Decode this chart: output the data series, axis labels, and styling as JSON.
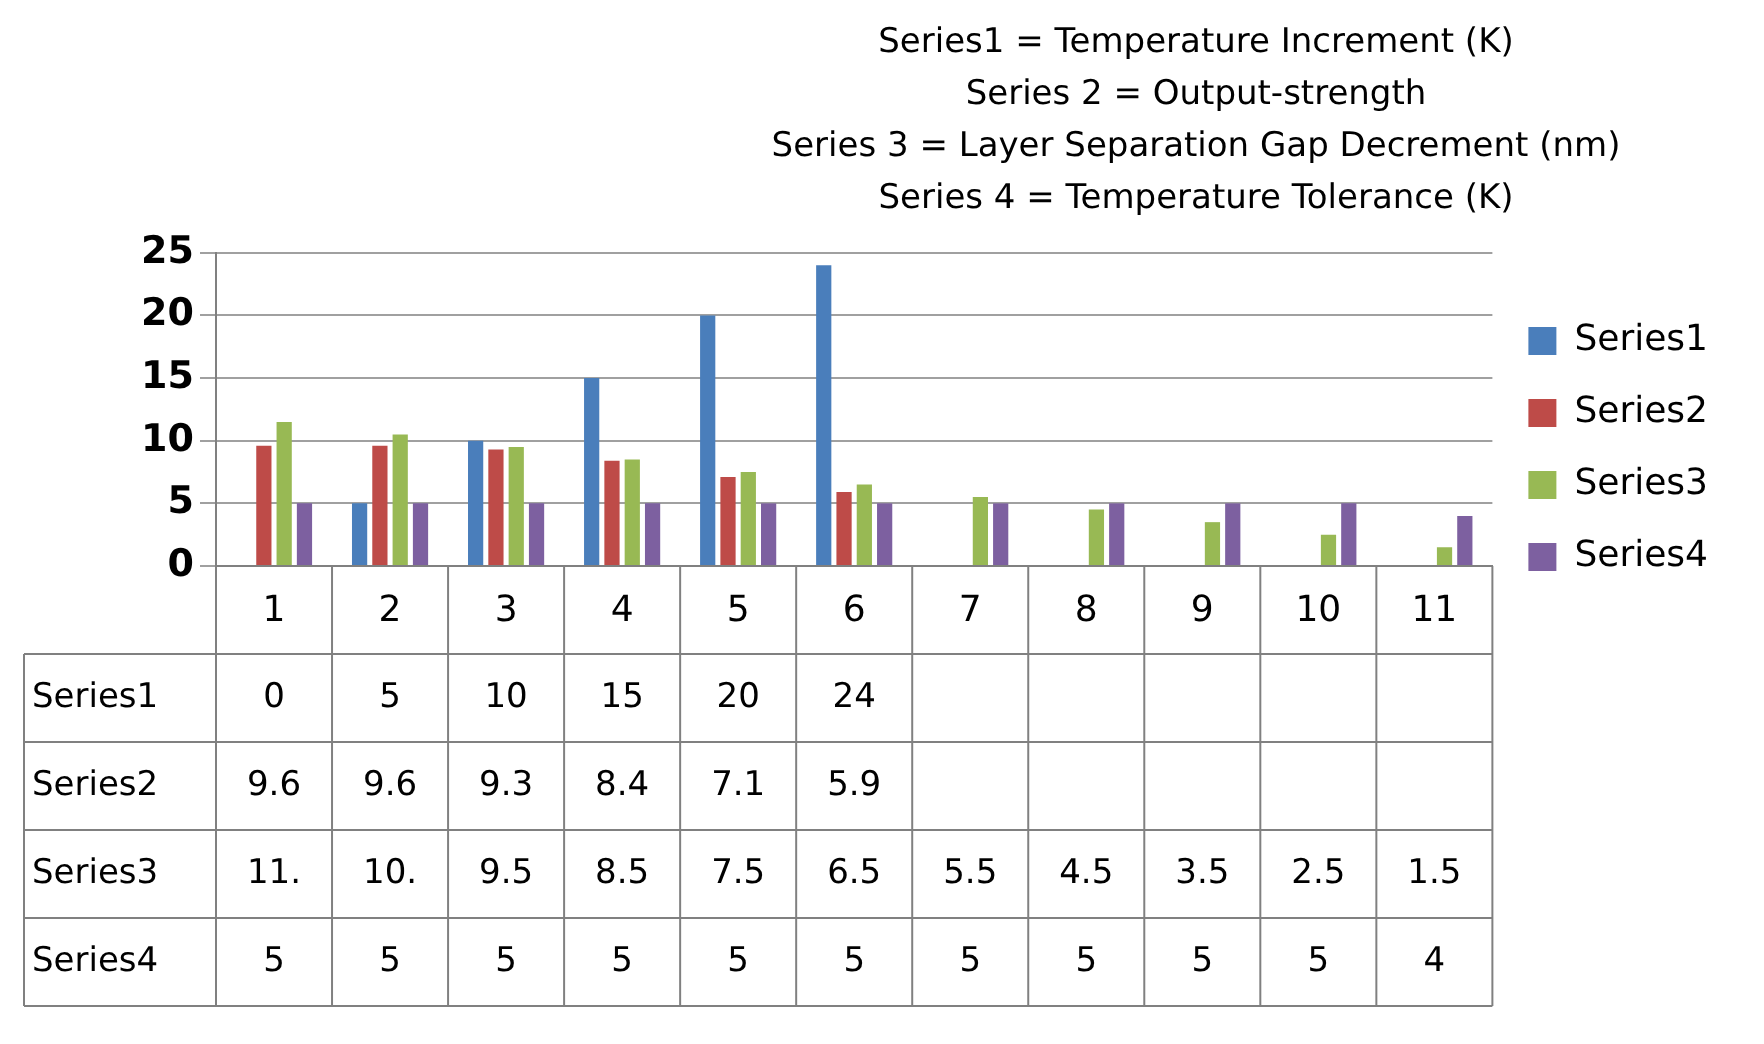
{
  "chart_data": {
    "type": "bar",
    "annotations": [
      "Series1 = Temperature Increment  (K)",
      "Series 2 = Output-strength",
      "Series 3 = Layer Separation Gap Decrement  (nm)",
      "Series 4 = Temperature Tolerance (K)"
    ],
    "categories": [
      "1",
      "2",
      "3",
      "4",
      "5",
      "6",
      "7",
      "8",
      "9",
      "10",
      "11"
    ],
    "series": [
      {
        "name": "Series1",
        "color": "#4a7ebb",
        "values": [
          0,
          5,
          10,
          15,
          20,
          24,
          null,
          null,
          null,
          null,
          null
        ],
        "value_labels": [
          "0",
          "5",
          "10",
          "15",
          "20",
          "24",
          null,
          null,
          null,
          null,
          null
        ]
      },
      {
        "name": "Series2",
        "color": "#be4b48",
        "values": [
          9.6,
          9.6,
          9.3,
          8.4,
          7.1,
          5.9,
          null,
          null,
          null,
          null,
          null
        ],
        "value_labels": [
          "9.6",
          "9.6",
          "9.3",
          "8.4",
          "7.1",
          "5.9",
          null,
          null,
          null,
          null,
          null
        ]
      },
      {
        "name": "Series3",
        "color": "#98b954",
        "values": [
          11.5,
          10.5,
          9.5,
          8.5,
          7.5,
          6.5,
          5.5,
          4.5,
          3.5,
          2.5,
          1.5
        ],
        "value_labels": [
          "11.",
          "10.",
          "9.5",
          "8.5",
          "7.5",
          "6.5",
          "5.5",
          "4.5",
          "3.5",
          "2.5",
          "1.5"
        ]
      },
      {
        "name": "Series4",
        "color": "#7d60a0",
        "values": [
          5,
          5,
          5,
          5,
          5,
          5,
          5,
          5,
          5,
          5,
          4
        ],
        "value_labels": [
          "5",
          "5",
          "5",
          "5",
          "5",
          "5",
          "5",
          "5",
          "5",
          "5",
          "4"
        ]
      }
    ],
    "ylim": [
      0,
      25
    ],
    "yticks": [
      0,
      5,
      10,
      15,
      20,
      25
    ],
    "grid": "y",
    "legend": "right"
  }
}
